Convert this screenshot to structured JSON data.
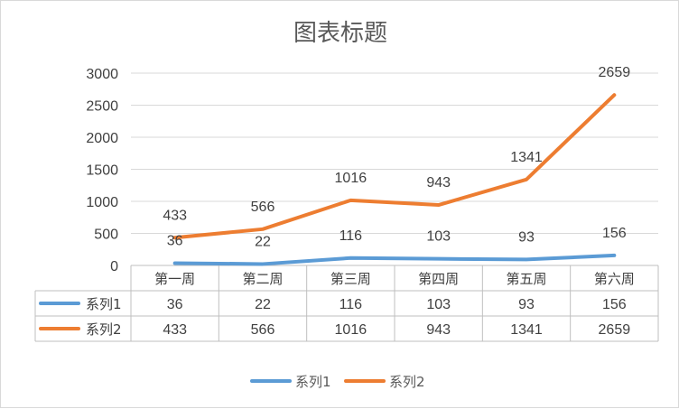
{
  "chart_data": {
    "type": "line",
    "title": "图表标题",
    "categories": [
      "第一周",
      "第二周",
      "第三周",
      "第四周",
      "第五周",
      "第六周"
    ],
    "ylim": [
      0,
      3000
    ],
    "yticks": [
      0,
      500,
      1000,
      1500,
      2000,
      2500,
      3000
    ],
    "grid": true,
    "legend_position": "bottom",
    "data_table": true,
    "series": [
      {
        "name": "系列1",
        "color": "#5B9BD5",
        "values": [
          36,
          22,
          116,
          103,
          93,
          156
        ]
      },
      {
        "name": "系列2",
        "color": "#ED7D31",
        "values": [
          433,
          566,
          1016,
          943,
          1341,
          2659
        ]
      }
    ]
  }
}
